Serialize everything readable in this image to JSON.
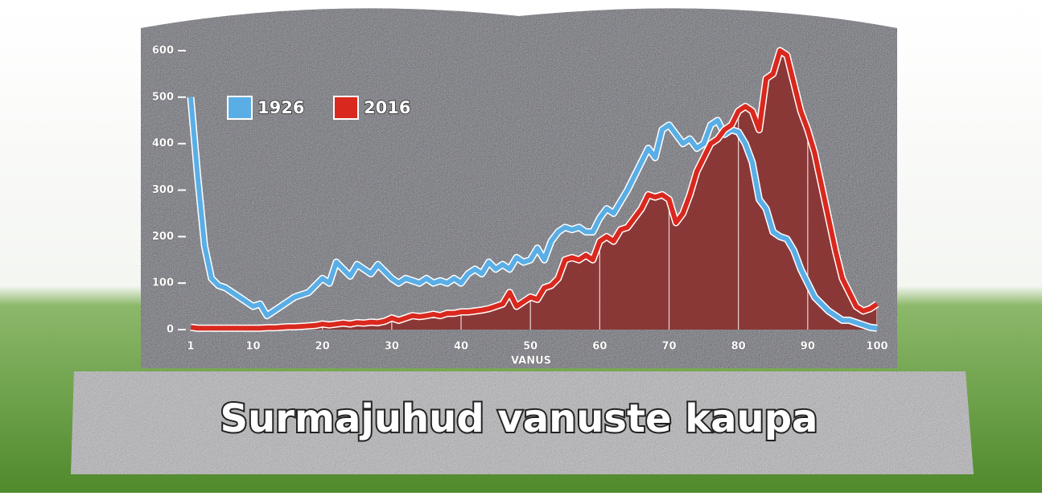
{
  "chart_data": {
    "type": "line",
    "title": "Surmajuhud vanuste kaupa",
    "x_label": "VANUS",
    "x": [
      1,
      2,
      3,
      4,
      5,
      6,
      7,
      8,
      9,
      10,
      11,
      12,
      13,
      14,
      15,
      16,
      17,
      18,
      19,
      20,
      21,
      22,
      23,
      24,
      25,
      26,
      27,
      28,
      29,
      30,
      31,
      32,
      33,
      34,
      35,
      36,
      37,
      38,
      39,
      40,
      41,
      42,
      43,
      44,
      45,
      46,
      47,
      48,
      49,
      50,
      51,
      52,
      53,
      54,
      55,
      56,
      57,
      58,
      59,
      60,
      61,
      62,
      63,
      64,
      65,
      66,
      67,
      68,
      69,
      70,
      71,
      72,
      73,
      74,
      75,
      76,
      77,
      78,
      79,
      80,
      81,
      82,
      83,
      84,
      85,
      86,
      87,
      88,
      89,
      90,
      91,
      92,
      93,
      94,
      95,
      96,
      97,
      98,
      99,
      100
    ],
    "series": [
      {
        "name": "1926",
        "color": "#5aaee6",
        "values": [
          500,
          330,
          180,
          110,
          95,
          90,
          80,
          70,
          60,
          50,
          55,
          30,
          40,
          50,
          60,
          70,
          75,
          80,
          95,
          110,
          100,
          145,
          130,
          115,
          140,
          130,
          120,
          140,
          125,
          110,
          100,
          110,
          105,
          100,
          110,
          100,
          105,
          100,
          110,
          100,
          120,
          130,
          120,
          145,
          130,
          140,
          130,
          155,
          145,
          150,
          175,
          150,
          190,
          210,
          220,
          215,
          220,
          210,
          210,
          240,
          260,
          250,
          275,
          300,
          330,
          360,
          390,
          370,
          430,
          440,
          420,
          400,
          410,
          390,
          400,
          440,
          450,
          420,
          430,
          425,
          400,
          360,
          280,
          260,
          210,
          200,
          195,
          170,
          130,
          100,
          70,
          55,
          40,
          30,
          20,
          20,
          15,
          10,
          5,
          3
        ]
      },
      {
        "name": "2016",
        "color": "#d9281e",
        "fill": "#8b2a28",
        "values": [
          5,
          3,
          3,
          3,
          3,
          3,
          3,
          3,
          3,
          3,
          3,
          4,
          4,
          5,
          6,
          6,
          7,
          8,
          9,
          12,
          10,
          12,
          14,
          12,
          15,
          14,
          16,
          15,
          18,
          25,
          20,
          25,
          30,
          28,
          30,
          33,
          30,
          35,
          35,
          38,
          38,
          40,
          42,
          45,
          50,
          55,
          80,
          50,
          60,
          70,
          65,
          90,
          95,
          110,
          150,
          155,
          150,
          160,
          150,
          190,
          200,
          190,
          215,
          220,
          240,
          260,
          290,
          285,
          290,
          280,
          230,
          250,
          290,
          340,
          370,
          400,
          410,
          430,
          440,
          470,
          480,
          470,
          430,
          540,
          550,
          600,
          590,
          530,
          470,
          430,
          380,
          310,
          240,
          170,
          110,
          80,
          50,
          40,
          45,
          55
        ]
      }
    ],
    "xlim": [
      1,
      100
    ],
    "xticks": [
      1,
      10,
      20,
      30,
      40,
      50,
      60,
      70,
      80,
      90,
      100
    ],
    "ylim": [
      0,
      600
    ],
    "yticks": [
      0,
      100,
      200,
      300,
      400,
      500,
      600
    ]
  }
}
